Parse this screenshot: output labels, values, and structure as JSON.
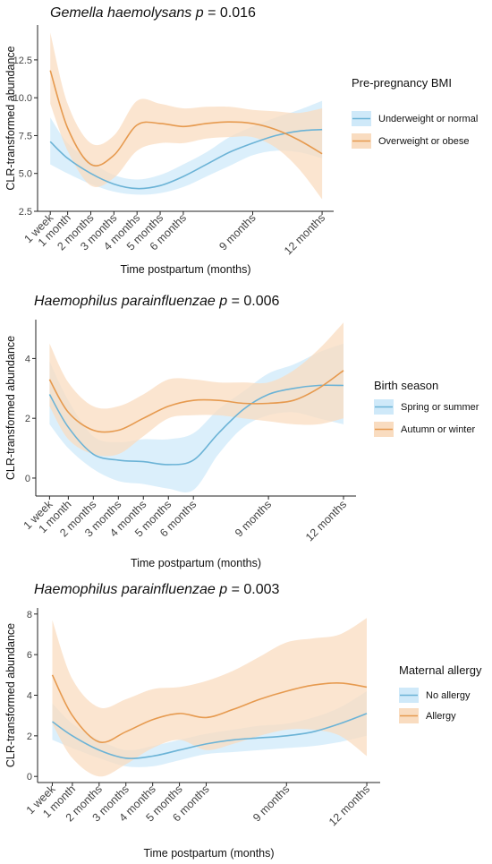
{
  "chart_data": [
    {
      "type": "line",
      "title_species": "Gemella haemolysans",
      "title_p_label": "p",
      "title_p_value": "= 0.016",
      "xlabel": "Time postpartum (months)",
      "ylabel": "CLR-transformed abundance",
      "x_tick_values": [
        0.25,
        1,
        2,
        3,
        4,
        5,
        6,
        9,
        12
      ],
      "x_tick_labels": [
        "1 week",
        "1 month",
        "2 months",
        "3 months",
        "4 months",
        "5 months",
        "6 months",
        "9 months",
        "12 months"
      ],
      "xlim": [
        -0.3,
        12.5
      ],
      "ylim": [
        2.5,
        14.8
      ],
      "y_ticks": [
        2.5,
        5.0,
        7.5,
        10.0,
        12.5
      ],
      "y_tick_labels": [
        "2.5",
        "5.0",
        "7.5",
        "10.0",
        "12.5"
      ],
      "legend_title": "Pre-pregnancy BMI",
      "legend_position": "right",
      "series": [
        {
          "name": "Underweight or normal",
          "color": "#6bb3d6",
          "fill": "#cfe9f9",
          "x": [
            0.25,
            1,
            2,
            3,
            4,
            5,
            6,
            7,
            8,
            9,
            10,
            11,
            12
          ],
          "y": [
            7.1,
            6.0,
            5.0,
            4.3,
            4.0,
            4.2,
            4.8,
            5.6,
            6.4,
            7.0,
            7.5,
            7.8,
            7.9
          ],
          "lower": [
            5.6,
            5.0,
            4.3,
            3.8,
            3.6,
            3.7,
            4.1,
            4.8,
            5.5,
            6.2,
            6.5,
            6.4,
            6.0
          ],
          "upper": [
            8.7,
            7.0,
            5.8,
            4.9,
            4.6,
            4.9,
            5.6,
            6.4,
            7.4,
            8.1,
            8.7,
            9.2,
            9.8
          ]
        },
        {
          "name": "Overweight or obese",
          "color": "#e69a4f",
          "fill": "#f9dcc0",
          "x": [
            0.25,
            1,
            2,
            3,
            4,
            5,
            6,
            7,
            8,
            9,
            10,
            11,
            12
          ],
          "y": [
            11.8,
            8.0,
            5.6,
            6.2,
            8.2,
            8.3,
            8.1,
            8.3,
            8.4,
            8.3,
            7.9,
            7.2,
            6.3
          ],
          "lower": [
            9.6,
            6.5,
            4.2,
            4.7,
            6.5,
            7.0,
            7.0,
            7.3,
            7.4,
            7.4,
            6.7,
            5.3,
            3.3
          ],
          "upper": [
            14.3,
            9.6,
            7.0,
            7.5,
            9.8,
            9.6,
            9.3,
            9.4,
            9.4,
            9.2,
            9.1,
            9.0,
            9.3
          ]
        }
      ]
    },
    {
      "type": "line",
      "title_species": "Haemophilus parainfluenzae",
      "title_p_label": "p",
      "title_p_value": "= 0.006",
      "xlabel": "Time postpartum (months)",
      "ylabel": "CLR-transformed abundance",
      "x_tick_values": [
        0.25,
        1,
        2,
        3,
        4,
        5,
        6,
        9,
        12
      ],
      "x_tick_labels": [
        "1 week",
        "1 month",
        "2 months",
        "3 months",
        "4 months",
        "5 months",
        "6 months",
        "9 months",
        "12 months"
      ],
      "xlim": [
        -0.3,
        12.5
      ],
      "ylim": [
        -0.6,
        5.3
      ],
      "y_ticks": [
        0,
        2,
        4
      ],
      "y_tick_labels": [
        "0",
        "2",
        "4"
      ],
      "legend_title": "Birth season",
      "legend_position": "right",
      "series": [
        {
          "name": "Spring or summer",
          "color": "#6bb3d6",
          "fill": "#cfe9f9",
          "x": [
            0.25,
            1,
            2,
            3,
            4,
            5,
            6,
            7,
            8,
            9,
            10,
            11,
            12
          ],
          "y": [
            2.8,
            1.7,
            0.8,
            0.6,
            0.55,
            0.45,
            0.6,
            1.5,
            2.3,
            2.8,
            3.0,
            3.1,
            3.1
          ],
          "lower": [
            1.8,
            1.0,
            0.3,
            -0.1,
            -0.2,
            -0.35,
            -0.4,
            0.8,
            1.7,
            2.1,
            2.2,
            2.0,
            1.8
          ],
          "upper": [
            3.9,
            2.6,
            1.4,
            1.2,
            1.3,
            1.3,
            1.5,
            2.3,
            2.9,
            3.5,
            3.8,
            4.2,
            4.5
          ]
        },
        {
          "name": "Autumn or winter",
          "color": "#e69a4f",
          "fill": "#f9dcc0",
          "x": [
            0.25,
            1,
            2,
            3,
            4,
            5,
            6,
            7,
            8,
            9,
            10,
            11,
            12
          ],
          "y": [
            3.3,
            2.2,
            1.6,
            1.6,
            2.0,
            2.4,
            2.6,
            2.6,
            2.5,
            2.5,
            2.6,
            3.0,
            3.6
          ],
          "lower": [
            2.4,
            1.3,
            0.8,
            0.8,
            1.4,
            2.0,
            2.1,
            2.1,
            2.0,
            1.9,
            1.8,
            1.8,
            2.0
          ],
          "upper": [
            4.5,
            3.2,
            2.4,
            2.4,
            2.8,
            3.3,
            3.3,
            3.2,
            3.2,
            3.2,
            3.6,
            4.3,
            5.2
          ]
        }
      ]
    },
    {
      "type": "line",
      "title_species": "Haemophilus parainfluenzae",
      "title_p_label": "p",
      "title_p_value": "= 0.003",
      "xlabel": "Time postpartum (months)",
      "ylabel": "CLR-transformed abundance",
      "x_tick_values": [
        0.25,
        1,
        2,
        3,
        4,
        5,
        6,
        9,
        12
      ],
      "x_tick_labels": [
        "1 week",
        "1 month",
        "2 months",
        "3 months",
        "4 months",
        "5 months",
        "6 months",
        "9 months",
        "12 months"
      ],
      "xlim": [
        -0.3,
        12.5
      ],
      "ylim": [
        -0.3,
        8.3
      ],
      "y_ticks": [
        0,
        2,
        4,
        6,
        8
      ],
      "y_tick_labels": [
        "0",
        "2",
        "4",
        "6",
        "8"
      ],
      "legend_title": "Maternal allergy",
      "legend_position": "right",
      "series": [
        {
          "name": "No allergy",
          "color": "#6bb3d6",
          "fill": "#cfe9f9",
          "x": [
            0.25,
            1,
            2,
            3,
            4,
            5,
            6,
            7,
            8,
            9,
            10,
            11,
            12
          ],
          "y": [
            2.7,
            2.0,
            1.3,
            0.9,
            1.0,
            1.3,
            1.6,
            1.8,
            1.9,
            2.0,
            2.2,
            2.6,
            3.1
          ],
          "lower": [
            1.8,
            1.4,
            0.9,
            0.5,
            0.5,
            0.8,
            1.1,
            1.2,
            1.3,
            1.4,
            1.5,
            1.7,
            2.0
          ],
          "upper": [
            3.6,
            2.6,
            1.8,
            1.3,
            1.5,
            1.8,
            2.1,
            2.3,
            2.5,
            2.6,
            2.9,
            3.4,
            4.2
          ]
        },
        {
          "name": "Allergy",
          "color": "#e69a4f",
          "fill": "#f9dcc0",
          "x": [
            0.25,
            1,
            2,
            3,
            4,
            5,
            6,
            7,
            8,
            9,
            10,
            11,
            12
          ],
          "y": [
            5.0,
            3.0,
            1.7,
            2.2,
            2.8,
            3.1,
            2.9,
            3.3,
            3.8,
            4.2,
            4.5,
            4.6,
            4.4
          ],
          "lower": [
            2.6,
            0.9,
            0.0,
            0.6,
            1.4,
            1.8,
            1.3,
            1.6,
            2.0,
            2.3,
            2.3,
            2.0,
            1.0
          ],
          "upper": [
            7.7,
            4.8,
            3.4,
            3.8,
            4.3,
            4.4,
            4.7,
            5.2,
            5.9,
            6.6,
            6.8,
            7.0,
            7.8
          ]
        }
      ]
    }
  ]
}
